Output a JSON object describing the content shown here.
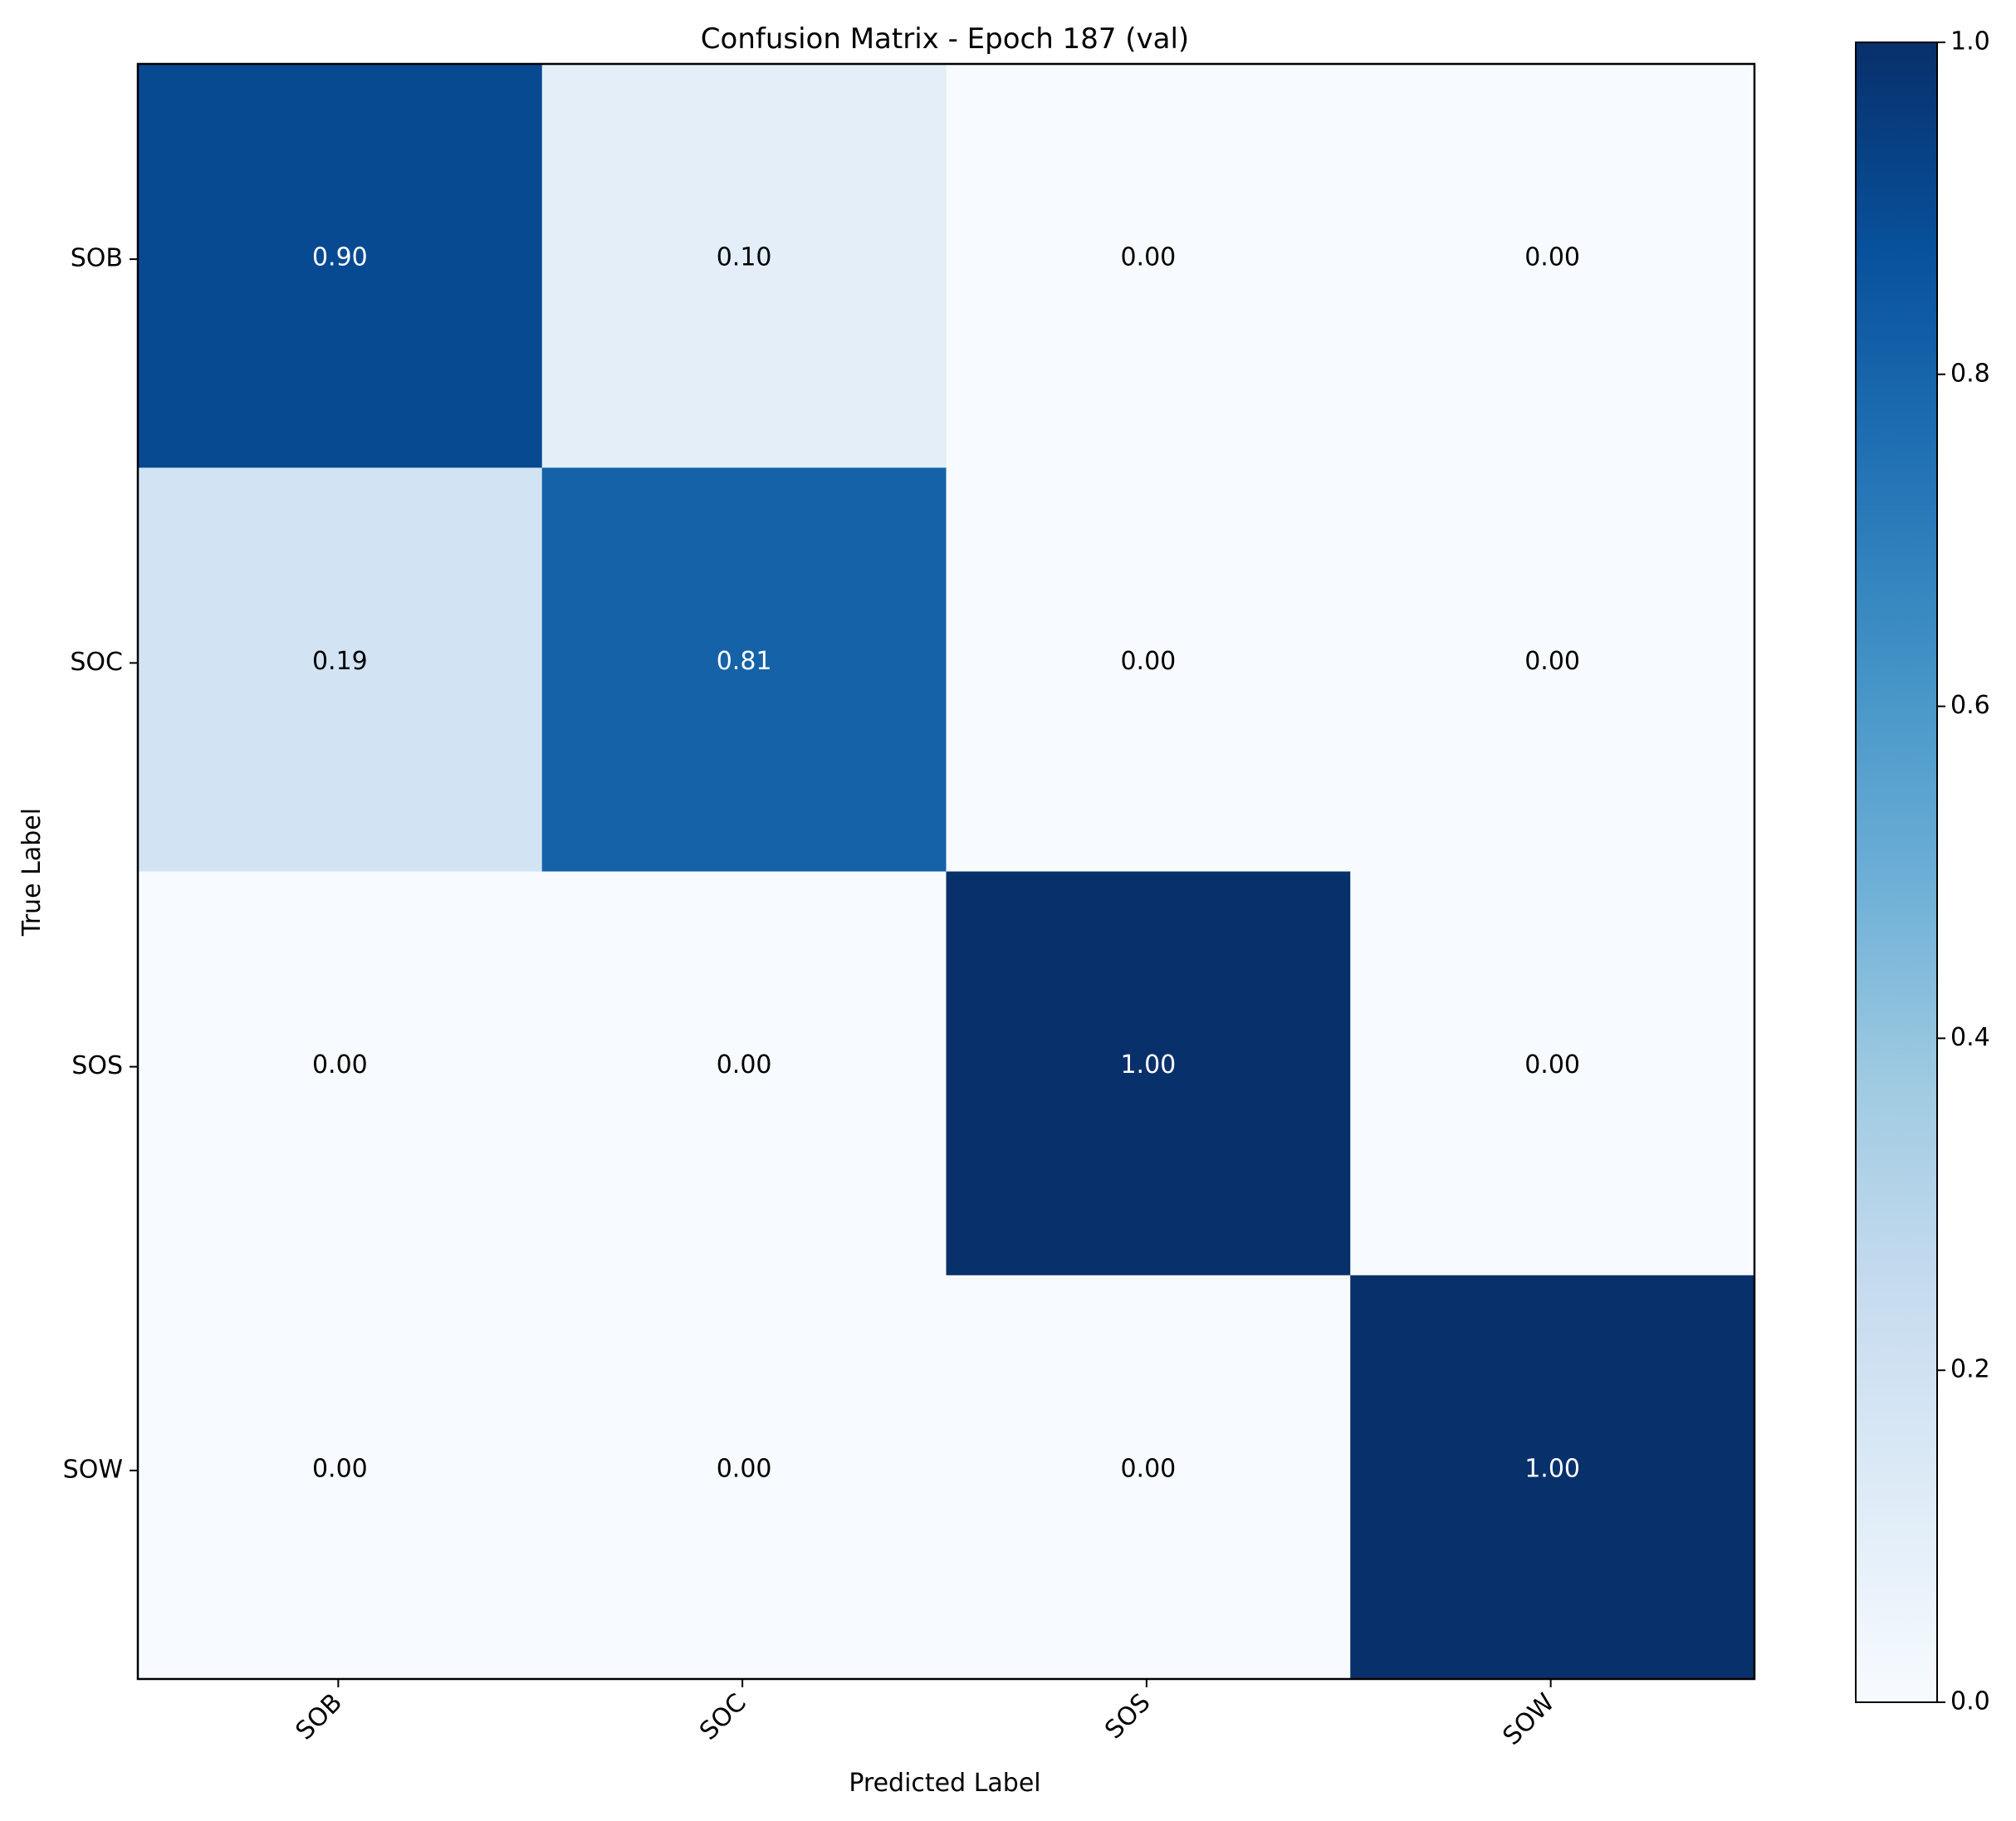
{
  "chart_data": {
    "type": "heatmap",
    "title": "Confusion Matrix - Epoch 187 (val)",
    "xlabel": "Predicted Label",
    "ylabel": "True Label",
    "x_categories": [
      "SOB",
      "SOC",
      "SOS",
      "SOW"
    ],
    "y_categories": [
      "SOB",
      "SOC",
      "SOS",
      "SOW"
    ],
    "values": [
      [
        0.9,
        0.1,
        0.0,
        0.0
      ],
      [
        0.19,
        0.81,
        0.0,
        0.0
      ],
      [
        0.0,
        0.0,
        1.0,
        0.0
      ],
      [
        0.0,
        0.0,
        0.0,
        1.0
      ]
    ],
    "cell_labels": [
      [
        "0.90",
        "0.10",
        "0.00",
        "0.00"
      ],
      [
        "0.19",
        "0.81",
        "0.00",
        "0.00"
      ],
      [
        "0.00",
        "0.00",
        "1.00",
        "0.00"
      ],
      [
        "0.00",
        "0.00",
        "0.00",
        "1.00"
      ]
    ],
    "colorbar": {
      "range": [
        0.0,
        1.0
      ],
      "ticks": [
        0.0,
        0.2,
        0.4,
        0.6,
        0.8,
        1.0
      ],
      "tick_labels": [
        "0.0",
        "0.2",
        "0.4",
        "0.6",
        "0.8",
        "1.0"
      ]
    },
    "colormap": "Blues",
    "colormap_stops": [
      "#f7fbff",
      "#deebf7",
      "#c6dbef",
      "#9ecae1",
      "#6baed6",
      "#4292c6",
      "#2171b5",
      "#08519c",
      "#08306b"
    ]
  }
}
